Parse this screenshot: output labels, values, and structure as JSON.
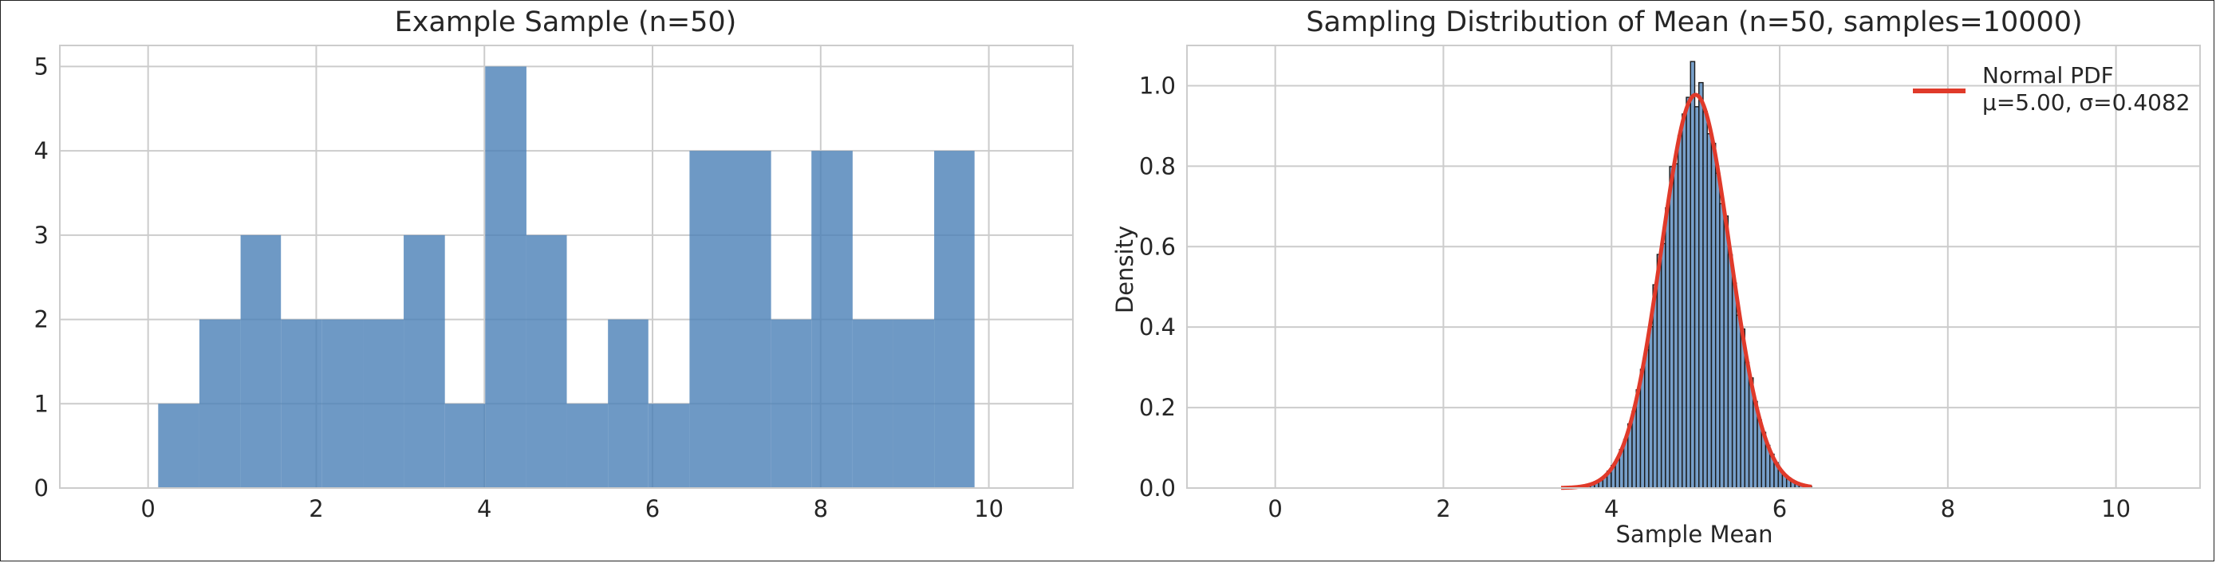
{
  "chart_data": [
    {
      "type": "bar",
      "title": "Example Sample (n=50)",
      "xlabel": "",
      "ylabel": "",
      "xlim": [
        -1.05,
        11.0
      ],
      "ylim": [
        0,
        5.25
      ],
      "xticks": [
        0,
        2,
        4,
        6,
        8,
        10
      ],
      "yticks": [
        0,
        1,
        2,
        3,
        4,
        5
      ],
      "grid": true,
      "bar_color": "#4a7fb7",
      "bins": [
        {
          "x0": 0.12,
          "x1": 0.61,
          "count": 1
        },
        {
          "x0": 0.61,
          "x1": 1.1,
          "count": 2
        },
        {
          "x0": 1.1,
          "x1": 1.58,
          "count": 3
        },
        {
          "x0": 1.58,
          "x1": 2.07,
          "count": 2
        },
        {
          "x0": 2.07,
          "x1": 2.56,
          "count": 2
        },
        {
          "x0": 2.56,
          "x1": 3.04,
          "count": 2
        },
        {
          "x0": 3.04,
          "x1": 3.53,
          "count": 3
        },
        {
          "x0": 3.53,
          "x1": 4.01,
          "count": 1
        },
        {
          "x0": 4.01,
          "x1": 4.5,
          "count": 5
        },
        {
          "x0": 4.5,
          "x1": 4.98,
          "count": 3
        },
        {
          "x0": 4.98,
          "x1": 5.47,
          "count": 1
        },
        {
          "x0": 5.47,
          "x1": 5.95,
          "count": 2
        },
        {
          "x0": 5.95,
          "x1": 6.44,
          "count": 1
        },
        {
          "x0": 6.44,
          "x1": 6.92,
          "count": 4
        },
        {
          "x0": 6.92,
          "x1": 7.41,
          "count": 4
        },
        {
          "x0": 7.41,
          "x1": 7.89,
          "count": 2
        },
        {
          "x0": 7.89,
          "x1": 8.38,
          "count": 4
        },
        {
          "x0": 8.38,
          "x1": 8.86,
          "count": 2
        },
        {
          "x0": 8.86,
          "x1": 9.35,
          "count": 2
        },
        {
          "x0": 9.35,
          "x1": 9.83,
          "count": 4
        }
      ]
    },
    {
      "type": "bar",
      "title": "Sampling Distribution of Mean (n=50, samples=10000)",
      "xlabel": "Sample Mean",
      "ylabel": "Density",
      "xlim": [
        -1.05,
        11.0
      ],
      "ylim": [
        0,
        1.1
      ],
      "xticks": [
        0,
        2,
        4,
        6,
        8,
        10
      ],
      "yticks": [
        0.0,
        0.2,
        0.4,
        0.6,
        0.8,
        1.0
      ],
      "ytick_labels": [
        "0.0",
        "0.2",
        "0.4",
        "0.6",
        "0.8",
        "1.0"
      ],
      "grid": true,
      "hist_color": "#4a7fb7",
      "hist_edge_color": "#1a1a1a",
      "hist_range": [
        3.4,
        6.38
      ],
      "hist_bins": 60,
      "pdf": {
        "mu": 5.0,
        "sigma": 0.4082,
        "color": "#e03a2a",
        "x_range": [
          3.4,
          6.38
        ]
      },
      "legend": {
        "position": "top-right",
        "entries": [
          "Normal PDF\nμ=5.00, σ=0.4082"
        ],
        "line1": "Normal PDF",
        "line2": "μ=5.00, σ=0.4082"
      }
    }
  ]
}
